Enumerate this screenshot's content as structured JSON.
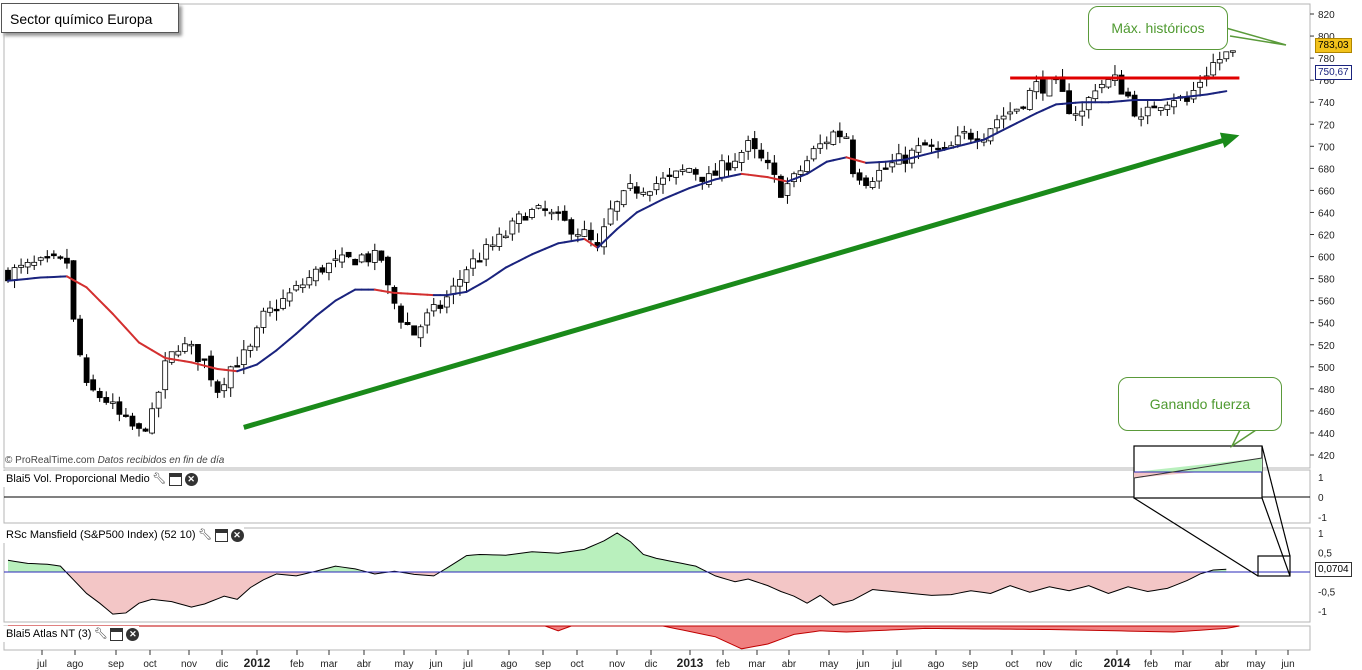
{
  "window": {
    "title": "Sector químico Europa"
  },
  "credit": {
    "source": "© ProRealTime.com",
    "note": "Datos recibidos en fin de día"
  },
  "annotations": {
    "max_label": "Máx. históricos",
    "strength_label": "Ganando fuerza"
  },
  "panels": {
    "volume": {
      "title": "Blai5 Vol. Proporcional Medio"
    },
    "mansfield": {
      "title": "RSc Mansfield (S&P500 Index) (52 10)"
    },
    "atlas": {
      "title": "Blai5 Atlas NT (3)"
    }
  },
  "price_tags": {
    "last": "783,03",
    "ma": "750,67",
    "rsc": "0,0704"
  },
  "colors": {
    "up_fill": "#ffffff",
    "down_fill": "#000000",
    "ma_up": "#1a237e",
    "ma_down": "#d32f2f",
    "trend": "#1a8a1a",
    "resistance": "#e00000",
    "rsc_pos": "#b9f0bd",
    "rsc_neg": "#f3c6c6",
    "last_tag": "#f2c21b"
  },
  "chart_data": [
    {
      "type": "candlestick",
      "title": "Sector químico Europa",
      "ylim": [
        410,
        828
      ],
      "y_ticks": [
        420,
        440,
        460,
        480,
        500,
        520,
        540,
        560,
        580,
        600,
        620,
        640,
        660,
        680,
        700,
        720,
        740,
        760,
        780,
        800,
        820
      ],
      "x_ticks": [
        "jul",
        "ago",
        "sep",
        "oct",
        "nov",
        "dic",
        "2012",
        "feb",
        "mar",
        "abr",
        "may",
        "jun",
        "jul",
        "ago",
        "sep",
        "oct",
        "nov",
        "dic",
        "2013",
        "feb",
        "mar",
        "abr",
        "may",
        "jun",
        "jul",
        "ago",
        "sep",
        "oct",
        "nov",
        "dic",
        "2014",
        "feb",
        "mar",
        "abr",
        "may",
        "jun"
      ],
      "close_path": [
        [
          0,
          585
        ],
        [
          4,
          592
        ],
        [
          7,
          595
        ],
        [
          9,
          595
        ],
        [
          10,
          540
        ],
        [
          12,
          480
        ],
        [
          15,
          470
        ],
        [
          17,
          455
        ],
        [
          20,
          440
        ],
        [
          22,
          455
        ],
        [
          24,
          500
        ],
        [
          26,
          520
        ],
        [
          28,
          515
        ],
        [
          30,
          505
        ],
        [
          32,
          480
        ],
        [
          34,
          500
        ],
        [
          37,
          515
        ],
        [
          39,
          545
        ],
        [
          42,
          560
        ],
        [
          45,
          575
        ],
        [
          48,
          590
        ],
        [
          51,
          595
        ],
        [
          54,
          600
        ],
        [
          57,
          598
        ],
        [
          58,
          570
        ],
        [
          60,
          545
        ],
        [
          62,
          530
        ],
        [
          64,
          545
        ],
        [
          66,
          555
        ],
        [
          68,
          570
        ],
        [
          70,
          590
        ],
        [
          73,
          605
        ],
        [
          76,
          620
        ],
        [
          79,
          640
        ],
        [
          82,
          640
        ],
        [
          85,
          630
        ],
        [
          88,
          620
        ],
        [
          90,
          605
        ],
        [
          92,
          640
        ],
        [
          95,
          660
        ],
        [
          98,
          665
        ],
        [
          101,
          670
        ],
        [
          104,
          680
        ],
        [
          107,
          670
        ],
        [
          110,
          685
        ],
        [
          113,
          700
        ],
        [
          116,
          680
        ],
        [
          118,
          660
        ],
        [
          120,
          670
        ],
        [
          123,
          695
        ],
        [
          126,
          712
        ],
        [
          128,
          710
        ],
        [
          129,
          680
        ],
        [
          131,
          670
        ],
        [
          134,
          680
        ],
        [
          137,
          690
        ],
        [
          140,
          700
        ],
        [
          143,
          693
        ],
        [
          146,
          710
        ],
        [
          149,
          712
        ],
        [
          151,
          725
        ],
        [
          154,
          735
        ],
        [
          157,
          755
        ],
        [
          160,
          755
        ],
        [
          162,
          735
        ],
        [
          164,
          730
        ],
        [
          166,
          755
        ],
        [
          169,
          760
        ],
        [
          171,
          745
        ],
        [
          173,
          722
        ],
        [
          175,
          738
        ],
        [
          178,
          745
        ],
        [
          180,
          740
        ],
        [
          182,
          760
        ],
        [
          184,
          775
        ],
        [
          186,
          783
        ]
      ],
      "series": [
        {
          "name": "ma",
          "values": [
            [
              0,
              578
            ],
            [
              5,
              581
            ],
            [
              9,
              582
            ],
            [
              12,
              572
            ],
            [
              16,
              548
            ],
            [
              20,
              522
            ],
            [
              24,
              508
            ],
            [
              28,
              504
            ],
            [
              32,
              498
            ],
            [
              35,
              496
            ],
            [
              38,
              502
            ],
            [
              41,
              515
            ],
            [
              44,
              530
            ],
            [
              47,
              546
            ],
            [
              50,
              560
            ],
            [
              53,
              570
            ],
            [
              56,
              570
            ],
            [
              59,
              567
            ],
            [
              62,
              566
            ],
            [
              65,
              565
            ],
            [
              67,
              565
            ],
            [
              70,
              568
            ],
            [
              73,
              578
            ],
            [
              76,
              590
            ],
            [
              80,
              602
            ],
            [
              84,
              612
            ],
            [
              88,
              616
            ],
            [
              90,
              608
            ],
            [
              93,
              625
            ],
            [
              96,
              640
            ],
            [
              100,
              652
            ],
            [
              104,
              662
            ],
            [
              108,
              670
            ],
            [
              112,
              675
            ],
            [
              116,
              672
            ],
            [
              119,
              668
            ],
            [
              122,
              675
            ],
            [
              125,
              686
            ],
            [
              128,
              690
            ],
            [
              131,
              685
            ],
            [
              134,
              686
            ],
            [
              137,
              688
            ],
            [
              141,
              694
            ],
            [
              145,
              700
            ],
            [
              149,
              706
            ],
            [
              153,
              718
            ],
            [
              157,
              730
            ],
            [
              160,
              738
            ],
            [
              164,
              740
            ],
            [
              168,
              740
            ],
            [
              172,
              742
            ],
            [
              176,
              742
            ],
            [
              180,
              745
            ],
            [
              183,
              747
            ],
            [
              186,
              750
            ]
          ]
        }
      ],
      "horizontal_line": {
        "label": "Máx. históricos",
        "value": 762,
        "x_range": [
          153,
          188
        ]
      },
      "trendline": {
        "from": [
          36,
          445
        ],
        "to": [
          188,
          710
        ]
      }
    },
    {
      "type": "line",
      "title": "Blai5 Vol. Proporcional Medio",
      "ylim": [
        -1.1,
        1.1
      ],
      "y_ticks": [
        1,
        0,
        -1
      ]
    },
    {
      "type": "area",
      "title": "RSc Mansfield (S&P500 Index) (52 10)",
      "ylim": [
        -1.3,
        1.3
      ],
      "y_ticks": [
        1,
        0.5,
        0,
        -0.5,
        -1
      ],
      "y_tick_labels": [
        "1",
        "0,5",
        "0",
        "-0,5",
        "-1"
      ],
      "last_value": 0.0704,
      "values": [
        [
          0,
          0.3
        ],
        [
          3,
          0.22
        ],
        [
          6,
          0.2
        ],
        [
          8,
          0.15
        ],
        [
          10,
          -0.2
        ],
        [
          12,
          -0.55
        ],
        [
          14,
          -0.8
        ],
        [
          16,
          -1.08
        ],
        [
          18,
          -1.05
        ],
        [
          20,
          -0.8
        ],
        [
          22,
          -0.7
        ],
        [
          25,
          -0.76
        ],
        [
          28,
          -0.9
        ],
        [
          30,
          -0.82
        ],
        [
          33,
          -0.62
        ],
        [
          35,
          -0.7
        ],
        [
          37,
          -0.4
        ],
        [
          39,
          -0.2
        ],
        [
          41,
          -0.05
        ],
        [
          44,
          -0.1
        ],
        [
          47,
          0.02
        ],
        [
          50,
          0.15
        ],
        [
          53,
          0.08
        ],
        [
          56,
          -0.05
        ],
        [
          59,
          0.02
        ],
        [
          62,
          -0.06
        ],
        [
          65,
          -0.1
        ],
        [
          67,
          0.1
        ],
        [
          70,
          0.42
        ],
        [
          72,
          0.45
        ],
        [
          76,
          0.43
        ],
        [
          80,
          0.52
        ],
        [
          84,
          0.48
        ],
        [
          88,
          0.58
        ],
        [
          91,
          0.8
        ],
        [
          93,
          1.0
        ],
        [
          95,
          0.78
        ],
        [
          97,
          0.45
        ],
        [
          99,
          0.35
        ],
        [
          102,
          0.25
        ],
        [
          105,
          0.15
        ],
        [
          108,
          -0.1
        ],
        [
          111,
          -0.25
        ],
        [
          113,
          -0.18
        ],
        [
          116,
          -0.35
        ],
        [
          118,
          -0.5
        ],
        [
          120,
          -0.62
        ],
        [
          122,
          -0.8
        ],
        [
          124,
          -0.6
        ],
        [
          126,
          -0.85
        ],
        [
          129,
          -0.72
        ],
        [
          132,
          -0.45
        ],
        [
          135,
          -0.5
        ],
        [
          138,
          -0.55
        ],
        [
          141,
          -0.6
        ],
        [
          144,
          -0.58
        ],
        [
          147,
          -0.48
        ],
        [
          150,
          -0.55
        ],
        [
          153,
          -0.35
        ],
        [
          156,
          -0.52
        ],
        [
          159,
          -0.38
        ],
        [
          162,
          -0.48
        ],
        [
          165,
          -0.35
        ],
        [
          168,
          -0.55
        ],
        [
          171,
          -0.38
        ],
        [
          174,
          -0.5
        ],
        [
          177,
          -0.42
        ],
        [
          180,
          -0.22
        ],
        [
          182,
          -0.05
        ],
        [
          184,
          0.05
        ],
        [
          186,
          0.0704
        ]
      ]
    },
    {
      "type": "area",
      "title": "Blai5 Atlas NT (3)",
      "values": [
        [
          0,
          0
        ],
        [
          82,
          0
        ],
        [
          84,
          -0.2
        ],
        [
          86,
          0
        ],
        [
          100,
          0
        ],
        [
          108,
          -0.45
        ],
        [
          112,
          -0.95
        ],
        [
          116,
          -0.75
        ],
        [
          120,
          -0.35
        ],
        [
          124,
          -0.2
        ],
        [
          128,
          -0.25
        ],
        [
          140,
          -0.1
        ],
        [
          160,
          -0.15
        ],
        [
          178,
          -0.25
        ],
        [
          186,
          -0.1
        ],
        [
          188,
          0
        ]
      ]
    }
  ]
}
